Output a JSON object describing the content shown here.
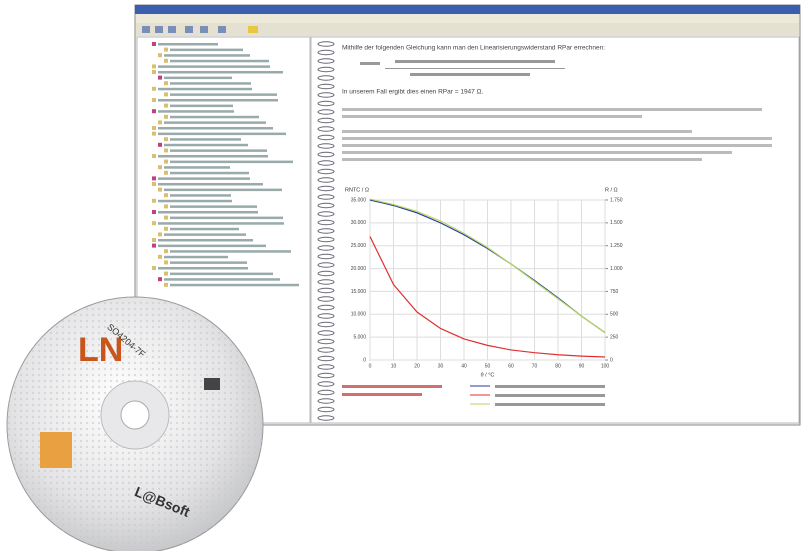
{
  "window": {
    "content": {
      "lines": [
        "Mithilfe der folgenden Gleichung kann man den Linearisierungswiderstand RPar errechnen:",
        "In unserem Fall ergibt dies einen RPar = 1947 Ω."
      ],
      "chart": {
        "type": "line",
        "y_label": "RNTC / Ω",
        "y2_label": "R / Ω",
        "x_label": "ϑ / °C",
        "x": [
          0,
          10,
          20,
          30,
          40,
          50,
          60,
          70,
          80,
          90,
          100
        ],
        "xlim": [
          0,
          100
        ],
        "xticks": [
          0,
          10,
          20,
          30,
          40,
          50,
          60,
          70,
          80,
          90,
          100
        ],
        "ylim": [
          0,
          35000
        ],
        "yticks": [
          0,
          {
            "value": 5000,
            "label": "5.000"
          },
          {
            "value": 10000,
            "label": "10.000"
          },
          {
            "value": 15000,
            "label": "15.000"
          },
          {
            "value": 20000,
            "label": "20.000"
          },
          {
            "value": 25000,
            "label": "25.000"
          },
          {
            "value": 30000,
            "label": "30.000"
          },
          {
            "value": 35000,
            "label": "35.000"
          }
        ],
        "y2lim": [
          0,
          1750
        ],
        "y2ticks": [
          0,
          250,
          500,
          750,
          {
            "value": 1000,
            "label": "1.000"
          },
          {
            "value": 1250,
            "label": "1.250"
          },
          {
            "value": 1500,
            "label": "1.500"
          },
          {
            "value": 1750,
            "label": "1.750"
          }
        ],
        "grid": true,
        "series": [
          {
            "color": "#e03030",
            "values": [
              27000,
              16500,
              10500,
              6900,
              4600,
              3200,
              2200,
              1600,
              1150,
              850,
              650
            ]
          },
          {
            "color": "#2a3a9a",
            "axis": "y2",
            "values": [
              1750,
              1690,
              1610,
              1500,
              1370,
              1220,
              1050,
              870,
              680,
              480,
              300
            ]
          },
          {
            "color": "#b8d860",
            "axis": "y2",
            "values": [
              1760,
              1700,
              1625,
              1520,
              1385,
              1230,
              1050,
              860,
              670,
              480,
              300
            ]
          }
        ]
      }
    }
  },
  "cd": {
    "logo": "LN",
    "code": "SO4204-7F",
    "brand": "L@Bsoft"
  }
}
